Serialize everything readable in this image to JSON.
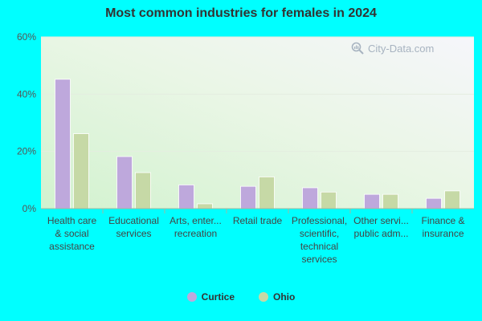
{
  "chart_data": {
    "type": "bar",
    "title": "Most common industries for females in 2024",
    "categories": [
      [
        "Health care",
        "& social",
        "assistance"
      ],
      [
        "Educational",
        "services"
      ],
      [
        "Arts, enter...",
        "recreation"
      ],
      [
        "Retail trade"
      ],
      [
        "Professional,",
        "scientific,",
        "technical",
        "services"
      ],
      [
        "Other servi...",
        "public adm..."
      ],
      [
        "Finance &",
        "insurance"
      ]
    ],
    "series": [
      {
        "name": "Curtice",
        "color": "#bea8dc",
        "values": [
          45.2,
          18.2,
          8.3,
          7.8,
          7.3,
          5.0,
          3.6
        ]
      },
      {
        "name": "Ohio",
        "color": "#c6d9a6",
        "values": [
          26.2,
          12.6,
          1.7,
          11.1,
          5.8,
          5.0,
          6.2
        ]
      }
    ],
    "ylim": [
      0,
      60
    ],
    "yticks": [
      0,
      20,
      40,
      60
    ],
    "ytick_labels": [
      "0%",
      "20%",
      "40%",
      "60%"
    ],
    "grid": true,
    "legend_position": "bottom-center"
  },
  "watermark": {
    "text": "City-Data.com",
    "icon": "magnifier-chart-icon"
  }
}
